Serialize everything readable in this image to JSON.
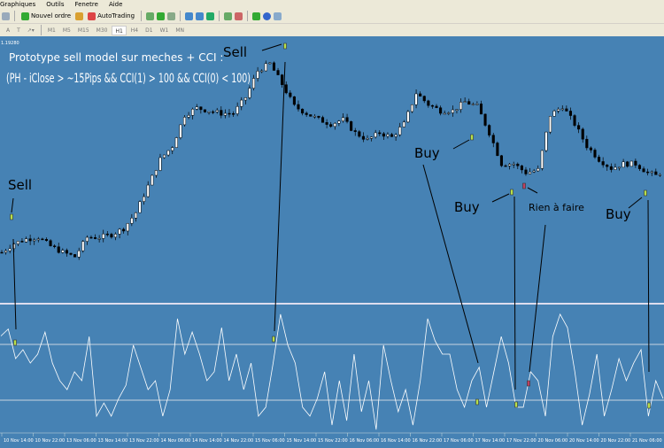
{
  "menu": [
    "Graphiques",
    "Outils",
    "Fenetre",
    "Aide"
  ],
  "toolbar": {
    "new_order": "Nouvel ordre",
    "autotrading": "AutoTrading",
    "text_tool": "A",
    "textlabel_tool": "T"
  },
  "timeframes": [
    "M1",
    "M5",
    "M15",
    "M30",
    "H1",
    "H4",
    "D1",
    "W1",
    "MN"
  ],
  "active_timeframe": "H1",
  "colors": {
    "background": "#4682b4",
    "line": "#ffffff",
    "annotation": "#000000",
    "marker": "#b8e04a",
    "marker_alt": "#c04060"
  },
  "chart_data": [
    {
      "type": "candlestick",
      "top_price_label": "1.19280",
      "close": [
        1.169,
        1.17,
        1.1705,
        1.1707,
        1.1697,
        1.169,
        1.1685,
        1.1707,
        1.1707,
        1.171,
        1.1717,
        1.1735,
        1.1765,
        1.1795,
        1.181,
        1.1845,
        1.1853,
        1.185,
        1.1847,
        1.1847,
        1.1865,
        1.1895,
        1.1903,
        1.188,
        1.1855,
        1.1847,
        1.184,
        1.1835,
        1.184,
        1.1825,
        1.1817,
        1.1825,
        1.182,
        1.1835,
        1.187,
        1.1857,
        1.185,
        1.185,
        1.186,
        1.1855,
        1.1825,
        1.179,
        1.179,
        1.178,
        1.1783,
        1.1845,
        1.1855,
        1.1835,
        1.181,
        1.1795,
        1.1785,
        1.179,
        1.179,
        1.178,
        1.1775
      ]
    },
    {
      "type": "line",
      "name": "CCI",
      "levels": [
        100,
        -100
      ],
      "values": [
        130,
        155,
        49,
        81,
        33,
        65,
        144,
        33,
        -30,
        -62,
        2,
        -30,
        128,
        -157,
        -110,
        -157,
        -94,
        -46,
        97,
        18,
        -62,
        -30,
        -157,
        -62,
        192,
        65,
        144,
        65,
        -30,
        2,
        160,
        -30,
        65,
        -62,
        33,
        -157,
        -125,
        33,
        208,
        97,
        33,
        -125,
        -157,
        -94,
        2,
        -189,
        -30,
        -173,
        65,
        -141,
        -30,
        -205,
        97,
        -30,
        -141,
        -62,
        -189,
        -30,
        192,
        113,
        65,
        65,
        -62,
        -125,
        -30,
        18,
        -125,
        2,
        128,
        33,
        -125,
        -125,
        2,
        -30,
        -157,
        128,
        208,
        160,
        2,
        -189,
        -78,
        65,
        -157,
        -62,
        49,
        -30,
        33,
        81,
        -157,
        -30,
        -94
      ]
    }
  ],
  "annotations": {
    "title": "Prototype sell model sur meches + CCI :",
    "formula": "(PH - iClose > ~15Pips && CCI(1) > 100 && CCI(0) < 100)",
    "sell1": "Sell",
    "sell2": "Sell",
    "buy1": "Buy",
    "buy2": "Buy",
    "rien": "Rien à faire",
    "buy3": "Buy"
  },
  "time_axis": [
    "10 Nov 14:00",
    "10 Nov 22:00",
    "13 Nov 06:00",
    "13 Nov 14:00",
    "13 Nov 22:00",
    "14 Nov 06:00",
    "14 Nov 14:00",
    "14 Nov 22:00",
    "15 Nov 06:00",
    "15 Nov 14:00",
    "15 Nov 22:00",
    "16 Nov 06:00",
    "16 Nov 14:00",
    "16 Nov 22:00",
    "17 Nov 06:00",
    "17 Nov 14:00",
    "17 Nov 22:00",
    "20 Nov 06:00",
    "20 Nov 14:00",
    "20 Nov 22:00",
    "21 Nov 06:00"
  ]
}
